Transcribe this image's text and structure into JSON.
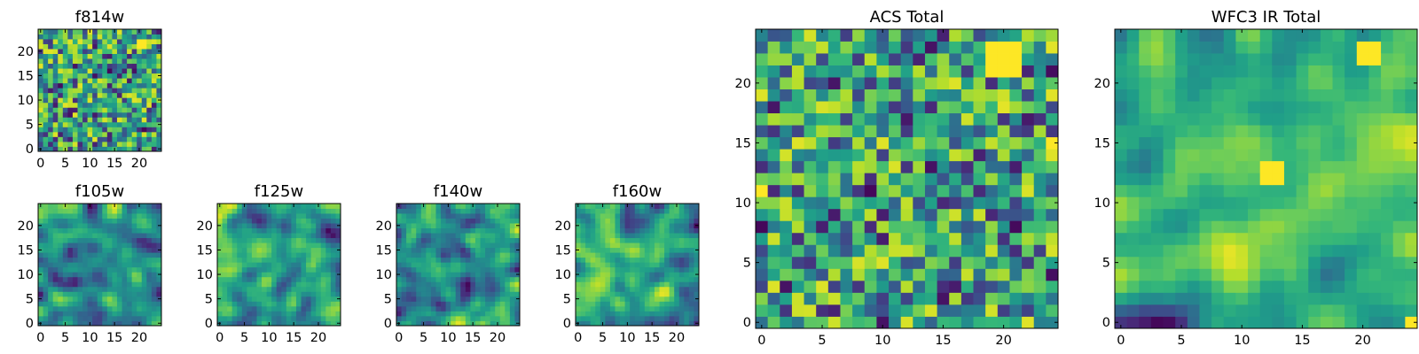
{
  "chart_data": [
    {
      "type": "heatmap",
      "title": "f814w",
      "xlim": [
        0,
        24
      ],
      "ylim": [
        0,
        24
      ],
      "xticks": [
        "0",
        "5",
        "10",
        "15",
        "20"
      ],
      "yticks": [
        "0",
        "5",
        "10",
        "15",
        "20"
      ],
      "colormap": "viridis",
      "seed": 11,
      "smooth": 0,
      "hot": [
        [
          20,
          21,
          2
        ]
      ]
    },
    {
      "type": "heatmap",
      "title": "f105w",
      "xlim": [
        0,
        24
      ],
      "ylim": [
        0,
        24
      ],
      "xticks": [
        "0",
        "5",
        "10",
        "15",
        "20"
      ],
      "yticks": [
        "0",
        "5",
        "10",
        "15",
        "20"
      ],
      "colormap": "viridis",
      "seed": 23,
      "smooth": 2,
      "hot": []
    },
    {
      "type": "heatmap",
      "title": "f125w",
      "xlim": [
        0,
        24
      ],
      "ylim": [
        0,
        24
      ],
      "xticks": [
        "0",
        "5",
        "10",
        "15",
        "20"
      ],
      "yticks": [
        "0",
        "5",
        "10",
        "15",
        "20"
      ],
      "colormap": "viridis",
      "seed": 37,
      "smooth": 2,
      "hot": []
    },
    {
      "type": "heatmap",
      "title": "f140w",
      "xlim": [
        0,
        24
      ],
      "ylim": [
        0,
        24
      ],
      "xticks": [
        "0",
        "5",
        "10",
        "15",
        "20"
      ],
      "yticks": [
        "0",
        "5",
        "10",
        "15",
        "20"
      ],
      "colormap": "viridis",
      "seed": 41,
      "smooth": 2,
      "hot": []
    },
    {
      "type": "heatmap",
      "title": "f160w",
      "xlim": [
        0,
        24
      ],
      "ylim": [
        0,
        24
      ],
      "xticks": [
        "0",
        "5",
        "10",
        "15",
        "20"
      ],
      "yticks": [
        "0",
        "5",
        "10",
        "15",
        "20"
      ],
      "colormap": "viridis",
      "seed": 53,
      "smooth": 2,
      "hot": []
    },
    {
      "type": "heatmap",
      "title": "ACS Total",
      "xlim": [
        0,
        24
      ],
      "ylim": [
        0,
        24
      ],
      "xticks": [
        "0",
        "5",
        "10",
        "15",
        "20"
      ],
      "yticks": [
        "0",
        "5",
        "10",
        "15",
        "20"
      ],
      "colormap": "viridis",
      "seed": 71,
      "smooth": 0,
      "hot": [
        [
          19,
          21,
          3
        ],
        [
          24,
          15,
          1
        ],
        [
          0,
          11,
          1
        ]
      ]
    },
    {
      "type": "heatmap",
      "title": "WFC3 IR Total",
      "xlim": [
        0,
        24
      ],
      "ylim": [
        0,
        24
      ],
      "xticks": [
        "0",
        "5",
        "10",
        "15",
        "20"
      ],
      "yticks": [
        "0",
        "5",
        "10",
        "15",
        "20"
      ],
      "colormap": "viridis",
      "seed": 97,
      "smooth": 2,
      "hot": [
        [
          12,
          12,
          2
        ],
        [
          20,
          22,
          2
        ],
        [
          24,
          0,
          1
        ]
      ]
    }
  ]
}
